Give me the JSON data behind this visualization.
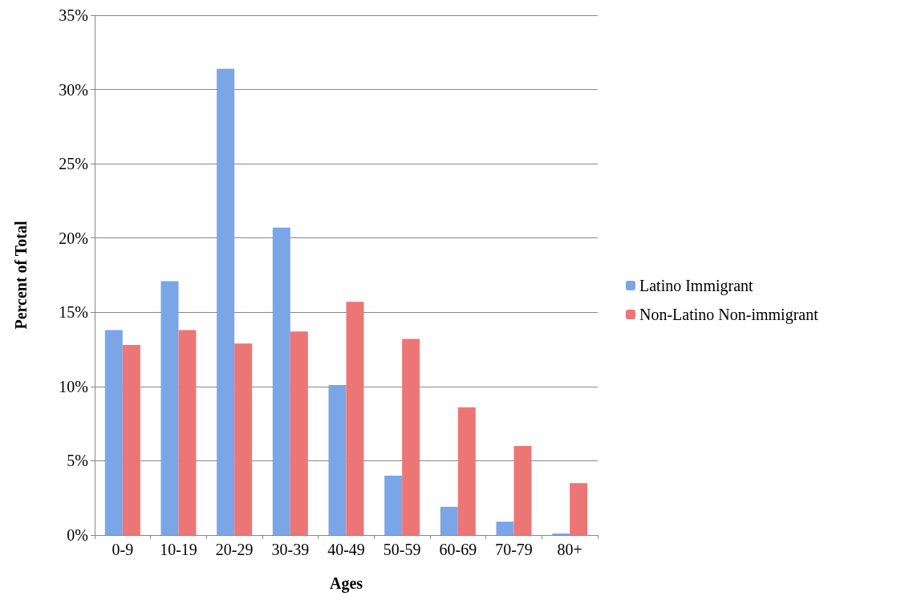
{
  "chart_data": {
    "type": "bar",
    "xlabel": "Ages",
    "ylabel": "Percent of Total",
    "categories": [
      "0-9",
      "10-19",
      "20-29",
      "30-39",
      "40-49",
      "50-59",
      "60-69",
      "70-79",
      "80+"
    ],
    "series": [
      {
        "name": "Latino Immigrant",
        "color": "#7aa6e8",
        "values": [
          13.8,
          17.1,
          31.4,
          20.7,
          10.1,
          4.0,
          1.9,
          0.9,
          0.1
        ]
      },
      {
        "name": "Non-Latino Non-immigrant",
        "color": "#ec7676",
        "values": [
          12.8,
          13.8,
          12.9,
          13.7,
          15.7,
          13.2,
          8.6,
          6.0,
          3.5
        ]
      }
    ],
    "ylim": [
      0,
      35
    ],
    "yticks": [
      {
        "value": 0,
        "label": "0%"
      },
      {
        "value": 5,
        "label": "5%"
      },
      {
        "value": 10,
        "label": "10%"
      },
      {
        "value": 15,
        "label": "15%"
      },
      {
        "value": 20,
        "label": "20%"
      },
      {
        "value": 25,
        "label": "25%"
      },
      {
        "value": 30,
        "label": "30%"
      },
      {
        "value": 35,
        "label": "35%"
      }
    ],
    "grid": "y",
    "legend": "right"
  }
}
